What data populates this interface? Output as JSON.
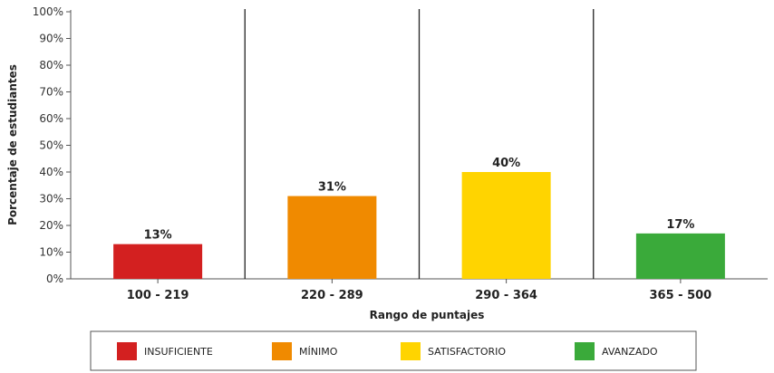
{
  "chart_data": {
    "type": "bar",
    "categories": [
      "100 - 219",
      "220 - 289",
      "290 - 364",
      "365 - 500"
    ],
    "values": [
      13,
      31,
      40,
      17
    ],
    "value_labels": [
      "13%",
      "31%",
      "40%",
      "17%"
    ],
    "colors": [
      "#d32020",
      "#f08a00",
      "#ffd400",
      "#3aaa3a"
    ],
    "xlabel": "Rango de puntajes",
    "ylabel": "Porcentaje de estudiantes",
    "ylim": [
      0,
      100
    ],
    "yticks": [
      0,
      10,
      20,
      30,
      40,
      50,
      60,
      70,
      80,
      90,
      100
    ],
    "ytick_labels": [
      "0%",
      "10%",
      "20%",
      "30%",
      "40%",
      "50%",
      "60%",
      "70%",
      "80%",
      "90%",
      "100%"
    ],
    "grid": false,
    "legend_position": "bottom",
    "legend": [
      {
        "label": "INSUFICIENTE",
        "color": "#d32020"
      },
      {
        "label": "MÍNIMO",
        "color": "#f08a00"
      },
      {
        "label": "SATISFACTORIO",
        "color": "#ffd400"
      },
      {
        "label": "AVANZADO",
        "color": "#3aaa3a"
      }
    ]
  }
}
